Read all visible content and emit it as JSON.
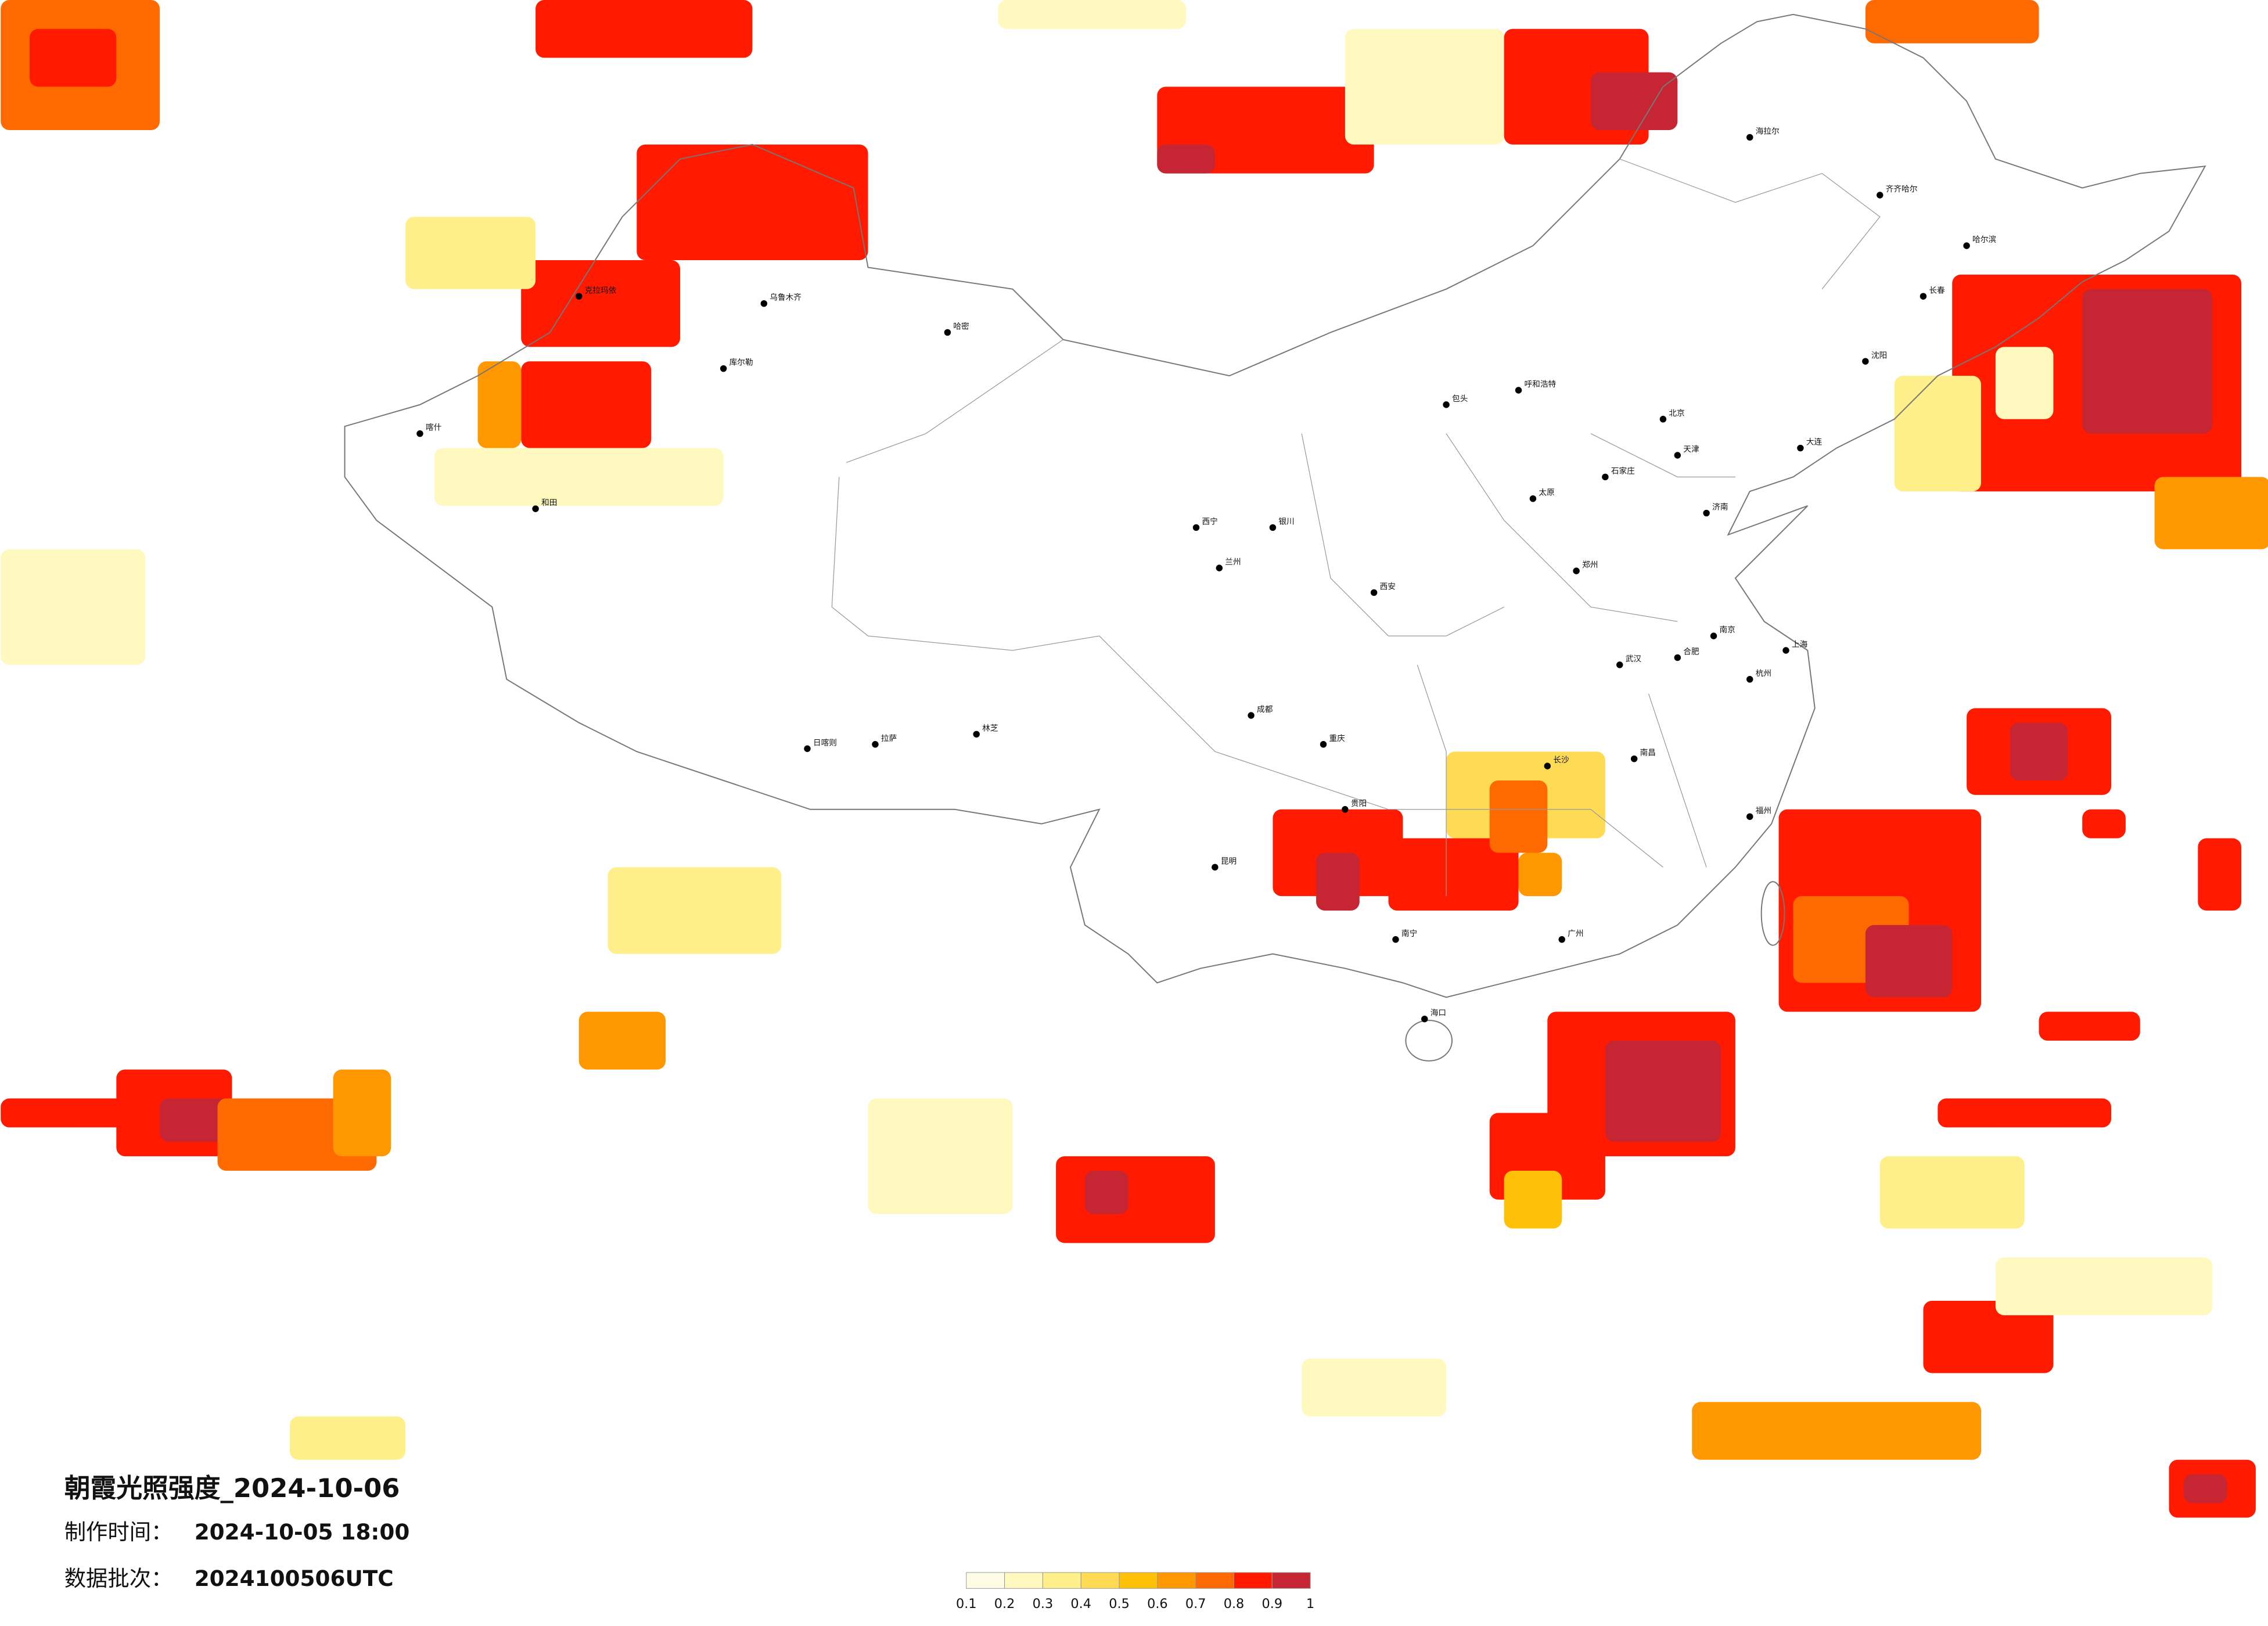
{
  "header": {
    "title": "朝霞光照强度_2024-10-06",
    "made_label": "制作时间：",
    "made_value": "2024-10-05 18:00",
    "batch_label": "数据批次：",
    "batch_value": "2024100506UTC"
  },
  "legend": {
    "ticks": [
      0.1,
      0.2,
      0.3,
      0.4,
      0.5,
      0.6,
      0.7,
      0.8,
      0.9,
      1
    ],
    "colors": [
      "#fffce6",
      "#fff8bf",
      "#ffef8a",
      "#ffdb55",
      "#ffc107",
      "#ff9800",
      "#ff6a00",
      "#ff1a00",
      "#c62633"
    ]
  },
  "cities": [
    "乌鲁木齐",
    "克拉玛依",
    "哈密",
    "库尔勒",
    "喀什",
    "和田",
    "拉萨",
    "日喀则",
    "林芝",
    "西宁",
    "兰州",
    "银川",
    "呼和浩特",
    "北京",
    "天津",
    "石家庄",
    "太原",
    "西安",
    "郑州",
    "济南",
    "成都",
    "重庆",
    "武汉",
    "长沙",
    "南昌",
    "杭州",
    "上海",
    "南京",
    "合肥",
    "福州",
    "广州",
    "南宁",
    "昆明",
    "贵阳",
    "海口",
    "哈尔滨",
    "长春",
    "沈阳",
    "大连",
    "包头",
    "齐齐哈尔",
    "海拉尔"
  ]
}
